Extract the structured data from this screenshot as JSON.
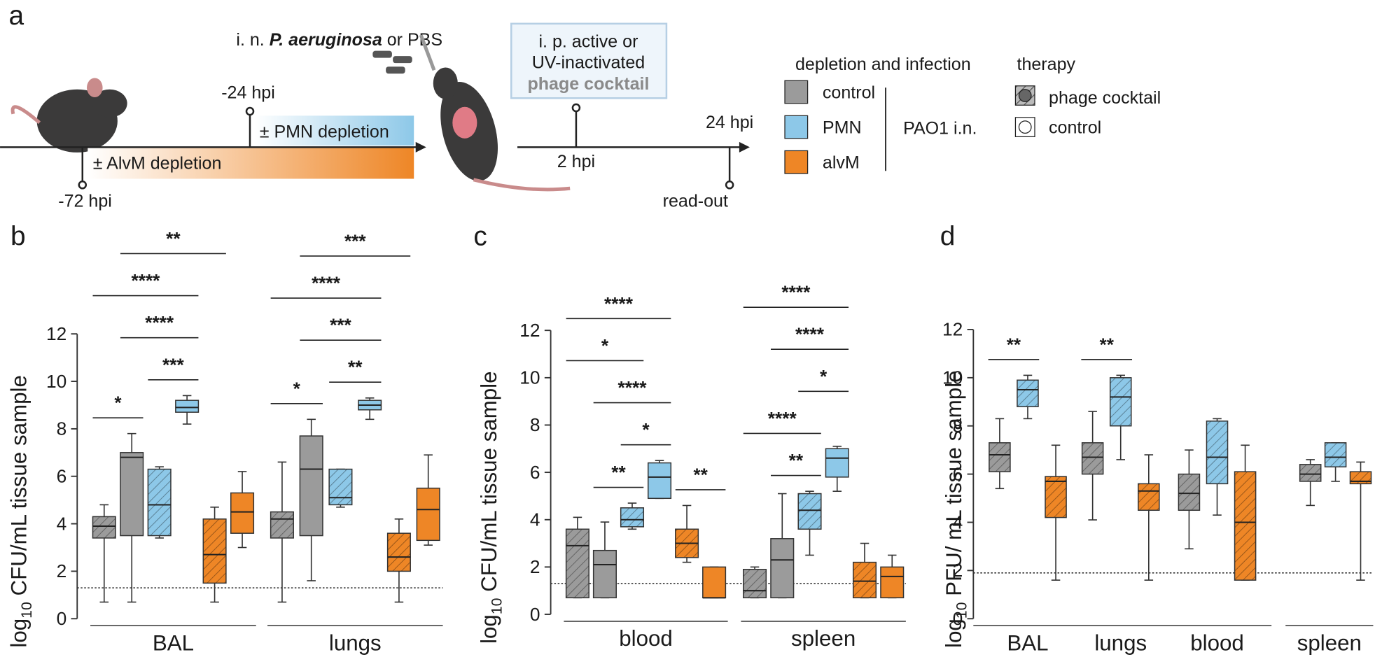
{
  "panel_a": {
    "label": "a",
    "intranasal": {
      "prefix": "i. n. ",
      "organism": "P. aeruginosa",
      "suffix": " or PBS"
    },
    "times": [
      "-72 hpi",
      "-24 hpi",
      "2 hpi",
      "24 hpi"
    ],
    "readout": "read-out",
    "pmn_depletion": "± PMN depletion",
    "alvm_depletion": "± AlvM depletion",
    "therapy_box": [
      "i. p. active or",
      "UV-inactivated",
      "phage cocktail"
    ],
    "legend": {
      "depletion_title": "depletion and infection",
      "depletion": [
        {
          "name": "control",
          "color": "#9b9b9b"
        },
        {
          "name": "PMN",
          "color": "#8dc8e8"
        },
        {
          "name": "alvM",
          "color": "#ee8626"
        }
      ],
      "infection": "PAO1 i.n.",
      "therapy_title": "therapy",
      "therapy": [
        "phage cocktail",
        "control"
      ]
    }
  },
  "chart_data": [
    {
      "type": "box",
      "label": "b",
      "ylabel": {
        "pre": "log",
        "sub": "10",
        "post": " CFU/mL tissue sample"
      },
      "ylim": [
        0,
        12
      ],
      "yticks": [
        0,
        2,
        4,
        6,
        8,
        10,
        12
      ],
      "lod": 1.3,
      "groups": [
        {
          "name": "BAL",
          "boxes": [
            {
              "condition": 0,
              "therapy": 0,
              "stats": [
                0.7,
                3.4,
                3.9,
                4.3,
                4.8
              ]
            },
            {
              "condition": 0,
              "therapy": 1,
              "stats": [
                0.7,
                3.5,
                6.8,
                7.0,
                7.8
              ]
            },
            {
              "condition": 1,
              "therapy": 0,
              "stats": [
                3.4,
                3.5,
                4.8,
                6.3,
                6.4
              ]
            },
            {
              "condition": 1,
              "therapy": 1,
              "stats": [
                8.2,
                8.7,
                8.9,
                9.2,
                9.4
              ]
            },
            {
              "condition": 2,
              "therapy": 0,
              "stats": [
                0.7,
                1.5,
                2.7,
                4.2,
                4.7
              ]
            },
            {
              "condition": 2,
              "therapy": 1,
              "stats": [
                3.0,
                3.6,
                4.5,
                5.3,
                6.2
              ]
            }
          ],
          "brackets": [
            {
              "label": "*",
              "pair": [
                0,
                1
              ]
            },
            {
              "label": "***",
              "pair": [
                2,
                3
              ]
            },
            {
              "label": "****",
              "pair": [
                1,
                3
              ]
            },
            {
              "label": "****",
              "pair": [
                0,
                3
              ]
            },
            {
              "label": "**",
              "pair": [
                1,
                4
              ]
            }
          ]
        },
        {
          "name": "lungs",
          "boxes": [
            {
              "condition": 0,
              "therapy": 0,
              "stats": [
                0.7,
                3.4,
                4.2,
                4.5,
                6.6
              ]
            },
            {
              "condition": 0,
              "therapy": 1,
              "stats": [
                1.6,
                3.5,
                6.3,
                7.7,
                8.4
              ]
            },
            {
              "condition": 1,
              "therapy": 0,
              "stats": [
                4.7,
                4.8,
                5.1,
                6.3,
                6.3
              ]
            },
            {
              "condition": 1,
              "therapy": 1,
              "stats": [
                8.4,
                8.8,
                9.0,
                9.2,
                9.3
              ]
            },
            {
              "condition": 2,
              "therapy": 0,
              "stats": [
                0.7,
                2.0,
                2.6,
                3.6,
                4.2
              ]
            },
            {
              "condition": 2,
              "therapy": 1,
              "stats": [
                3.1,
                3.3,
                4.6,
                5.5,
                6.9
              ]
            }
          ],
          "brackets": [
            {
              "label": "*",
              "pair": [
                0,
                1
              ]
            },
            {
              "label": "**",
              "pair": [
                2,
                3
              ]
            },
            {
              "label": "***",
              "pair": [
                1,
                3
              ]
            },
            {
              "label": "****",
              "pair": [
                0,
                3
              ]
            },
            {
              "label": "***",
              "pair": [
                1,
                4
              ]
            }
          ]
        }
      ]
    },
    {
      "type": "box",
      "label": "c",
      "ylabel": {
        "pre": "log",
        "sub": "10",
        "post": " CFU/mL tissue sample"
      },
      "ylim": [
        0,
        12
      ],
      "yticks": [
        0,
        2,
        4,
        6,
        8,
        10,
        12
      ],
      "lod": 1.3,
      "groups": [
        {
          "name": "blood",
          "boxes": [
            {
              "condition": 0,
              "therapy": 0,
              "stats": [
                0.7,
                0.7,
                2.9,
                3.6,
                4.1
              ]
            },
            {
              "condition": 0,
              "therapy": 1,
              "stats": [
                0.7,
                0.7,
                2.1,
                2.7,
                3.9
              ]
            },
            {
              "condition": 1,
              "therapy": 0,
              "stats": [
                3.6,
                3.7,
                4.0,
                4.5,
                4.7
              ]
            },
            {
              "condition": 1,
              "therapy": 1,
              "stats": [
                4.9,
                4.9,
                5.8,
                6.4,
                6.5
              ]
            },
            {
              "condition": 2,
              "therapy": 0,
              "stats": [
                2.2,
                2.4,
                3.0,
                3.6,
                4.6
              ]
            },
            {
              "condition": 2,
              "therapy": 1,
              "stats": [
                0.7,
                0.7,
                0.7,
                2.0,
                2.0
              ]
            }
          ],
          "brackets": [
            {
              "label": "**",
              "pair": [
                1,
                2
              ]
            },
            {
              "label": "*",
              "pair": [
                2,
                3
              ]
            },
            {
              "label": "****",
              "pair": [
                1,
                3
              ]
            },
            {
              "label": "*",
              "pair": [
                0,
                2
              ]
            },
            {
              "label": "****",
              "pair": [
                0,
                3
              ]
            },
            {
              "label": "**",
              "pair": [
                4,
                5
              ]
            }
          ]
        },
        {
          "name": "spleen",
          "boxes": [
            {
              "condition": 0,
              "therapy": 0,
              "stats": [
                0.7,
                0.7,
                1.0,
                1.9,
                2.0
              ]
            },
            {
              "condition": 0,
              "therapy": 1,
              "stats": [
                0.7,
                0.7,
                2.3,
                3.2,
                5.1
              ]
            },
            {
              "condition": 1,
              "therapy": 0,
              "stats": [
                2.5,
                3.6,
                4.4,
                5.1,
                5.2
              ]
            },
            {
              "condition": 1,
              "therapy": 1,
              "stats": [
                5.2,
                5.8,
                6.6,
                7.0,
                7.1
              ]
            },
            {
              "condition": 2,
              "therapy": 0,
              "stats": [
                0.7,
                0.7,
                1.4,
                2.2,
                3.0
              ]
            },
            {
              "condition": 2,
              "therapy": 1,
              "stats": [
                0.7,
                0.7,
                1.6,
                2.0,
                2.5
              ]
            }
          ],
          "brackets": [
            {
              "label": "**",
              "pair": [
                1,
                2
              ]
            },
            {
              "label": "****",
              "pair": [
                0,
                2
              ]
            },
            {
              "label": "*",
              "pair": [
                2,
                3
              ]
            },
            {
              "label": "****",
              "pair": [
                1,
                3
              ]
            },
            {
              "label": "****",
              "pair": [
                0,
                3
              ]
            }
          ]
        }
      ]
    },
    {
      "type": "box",
      "label": "d",
      "ylabel": {
        "pre": "log",
        "sub": "10",
        "post": " PFU/ mL tissue sample"
      },
      "ylim": [
        0,
        12
      ],
      "yticks": [
        0,
        2,
        4,
        6,
        8,
        10,
        12
      ],
      "lod": 1.9,
      "groups": [
        {
          "name": "BAL",
          "boxes": [
            {
              "condition": 0,
              "therapy": 0,
              "stats": [
                5.4,
                6.1,
                6.8,
                7.3,
                8.3
              ]
            },
            {
              "condition": 1,
              "therapy": 0,
              "stats": [
                8.3,
                8.8,
                9.5,
                9.9,
                10.1
              ]
            },
            {
              "condition": 2,
              "therapy": 0,
              "stats": [
                1.6,
                4.2,
                5.7,
                5.9,
                7.2
              ]
            }
          ],
          "brackets": [
            {
              "label": "**",
              "pair": [
                0,
                1
              ]
            }
          ]
        },
        {
          "name": "lungs",
          "boxes": [
            {
              "condition": 0,
              "therapy": 0,
              "stats": [
                4.1,
                6.0,
                6.7,
                7.3,
                8.6
              ]
            },
            {
              "condition": 1,
              "therapy": 0,
              "stats": [
                6.6,
                8.0,
                9.2,
                10.0,
                10.1
              ]
            },
            {
              "condition": 2,
              "therapy": 0,
              "stats": [
                1.6,
                4.5,
                5.3,
                5.6,
                6.8
              ]
            }
          ],
          "brackets": [
            {
              "label": "**",
              "pair": [
                0,
                1
              ]
            }
          ]
        },
        {
          "name": "blood",
          "boxes": [
            {
              "condition": 0,
              "therapy": 0,
              "stats": [
                2.9,
                4.5,
                5.2,
                6.0,
                7.0
              ]
            },
            {
              "condition": 1,
              "therapy": 0,
              "stats": [
                4.3,
                5.6,
                6.7,
                8.2,
                8.3
              ]
            },
            {
              "condition": 2,
              "therapy": 0,
              "stats": [
                1.6,
                1.6,
                4.0,
                6.1,
                7.2
              ]
            }
          ],
          "brackets": []
        },
        {
          "name": "spleen",
          "boxes": [
            {
              "condition": 0,
              "therapy": 0,
              "stats": [
                4.7,
                5.7,
                6.0,
                6.4,
                6.6
              ]
            },
            {
              "condition": 1,
              "therapy": 0,
              "stats": [
                5.7,
                6.3,
                6.7,
                7.3,
                7.3
              ]
            },
            {
              "condition": 2,
              "therapy": 0,
              "stats": [
                1.6,
                5.6,
                5.7,
                6.1,
                6.5
              ]
            }
          ],
          "brackets": []
        }
      ]
    }
  ]
}
